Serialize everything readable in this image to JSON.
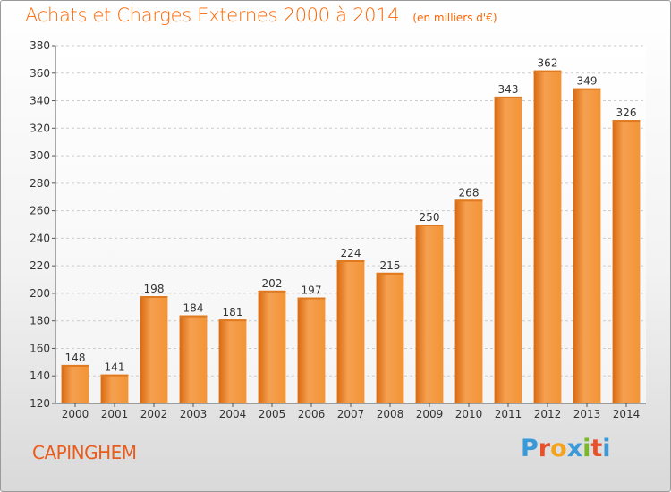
{
  "chart_data": {
    "type": "bar",
    "title": "Achats et Charges Externes 2000 à 2014",
    "unit": "(en milliers d'€)",
    "categories": [
      "2000",
      "2001",
      "2002",
      "2003",
      "2004",
      "2005",
      "2006",
      "2007",
      "2008",
      "2009",
      "2010",
      "2011",
      "2012",
      "2013",
      "2014"
    ],
    "values": [
      148,
      141,
      198,
      184,
      181,
      202,
      197,
      224,
      215,
      250,
      268,
      343,
      362,
      349,
      326
    ],
    "ylim": [
      120,
      380
    ],
    "yticks": [
      120,
      140,
      160,
      180,
      200,
      220,
      240,
      260,
      280,
      300,
      320,
      340,
      360,
      380
    ],
    "grid": true,
    "bar_color": "#f28c30"
  },
  "commune": "CAPINGHEM",
  "logo": {
    "text": "Proxiti",
    "letters": [
      {
        "ch": "P",
        "color": "#3a9ad9"
      },
      {
        "ch": "r",
        "color": "#e8502a"
      },
      {
        "ch": "o",
        "color": "#f2a31b"
      },
      {
        "ch": "x",
        "color": "#3a9ad9"
      },
      {
        "ch": "i",
        "color": "#7ab929"
      },
      {
        "ch": "t",
        "color": "#e8502a"
      },
      {
        "ch": "i",
        "color": "#3a9ad9"
      }
    ]
  }
}
